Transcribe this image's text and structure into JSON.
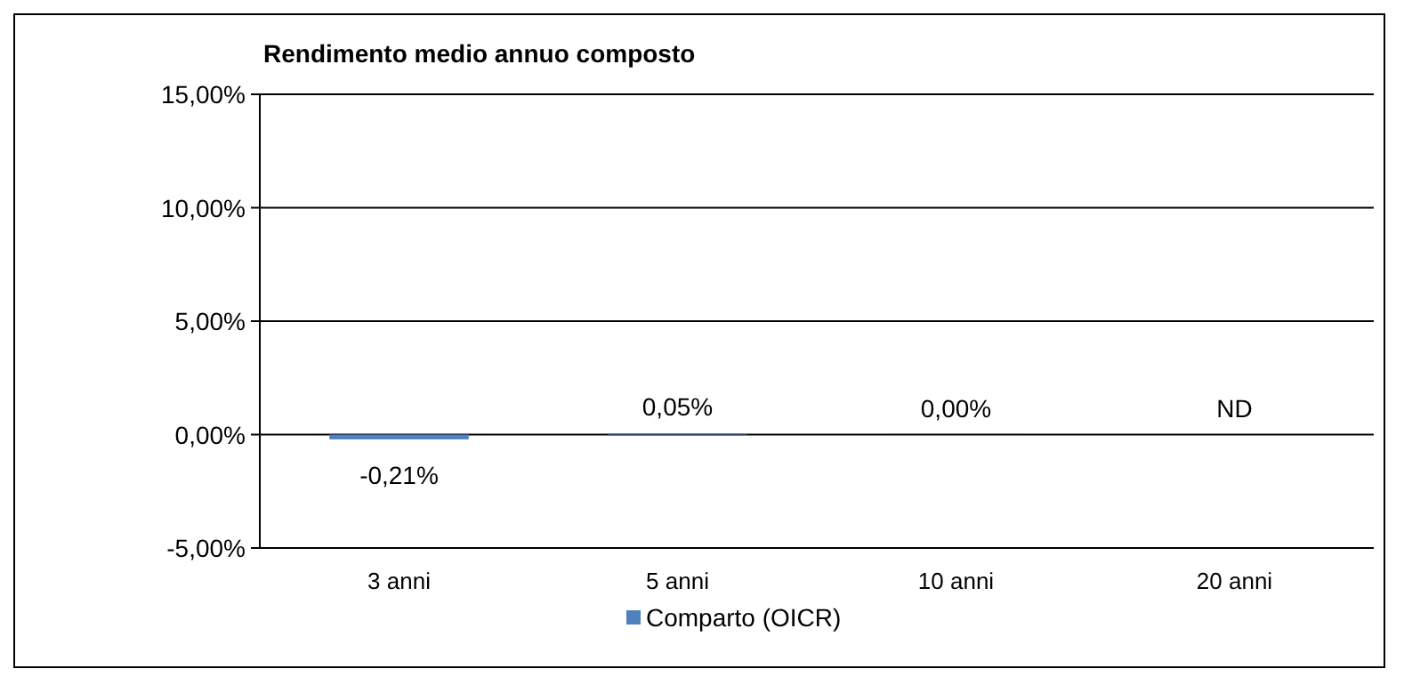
{
  "chart_data": {
    "type": "bar",
    "title": "Rendimento medio annuo composto",
    "categories": [
      "3 anni",
      "5 anni",
      "10 anni",
      "20 anni"
    ],
    "series": [
      {
        "name": "Comparto (OICR)",
        "color": "#4f81bd",
        "values": [
          -0.21,
          0.05,
          0.0,
          null
        ],
        "value_labels": [
          "-0,21%",
          "0,05%",
          "0,00%",
          "ND"
        ]
      }
    ],
    "ylim": [
      -5,
      15
    ],
    "yticks": [
      {
        "value": -5,
        "label": "-5,00%"
      },
      {
        "value": 0,
        "label": "0,00%"
      },
      {
        "value": 5,
        "label": "5,00%"
      },
      {
        "value": 10,
        "label": "10,00%"
      },
      {
        "value": 15,
        "label": "15,00%"
      }
    ],
    "grid": "y",
    "legend": "bottom"
  }
}
